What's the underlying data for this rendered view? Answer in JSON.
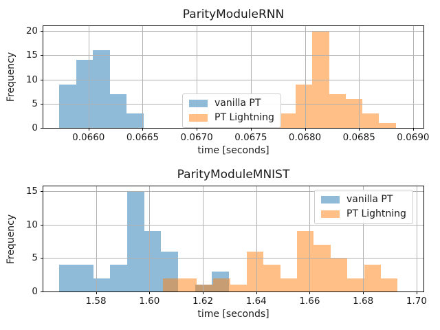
{
  "style": {
    "background": "#ffffff",
    "text_color": "#1a1a1a",
    "spine_color": "#000000",
    "grid_color": "#b0b0b0",
    "legend_border": "#cccccc",
    "series_blue": "#1f77b4",
    "series_orange": "#ff7f0e",
    "blue_rendered": "#8fbbd9",
    "orange_rendered": "#ffbf86",
    "overlap_rendered": "#c79d73"
  },
  "chart_data": [
    {
      "type": "histogram",
      "title": "ParityModuleRNN",
      "xlabel": "time [seconds]",
      "ylabel": "Frequency",
      "xlim": [
        0.065582,
        0.069096
      ],
      "ylim": [
        0,
        21
      ],
      "xticks": [
        0.066,
        0.0665,
        0.067,
        0.0675,
        0.068,
        0.0685,
        0.069
      ],
      "xtick_labels": [
        "0.0660",
        "0.0665",
        "0.0670",
        "0.0675",
        "0.0680",
        "0.0685",
        "0.0690"
      ],
      "yticks": [
        0,
        5,
        10,
        15,
        20
      ],
      "ytick_labels": [
        "0",
        "5",
        "10",
        "15",
        "20"
      ],
      "grid": true,
      "legend_loc": "center",
      "series": [
        {
          "name": "vanilla PT",
          "color": "#1f77b4",
          "alpha": 0.5,
          "bin_start": 0.06573,
          "bin_width": 0.000156,
          "counts": [
            9,
            14,
            16,
            7,
            3
          ]
        },
        {
          "name": "PT Lightning",
          "color": "#ff7f0e",
          "alpha": 0.5,
          "bin_start": 0.06776,
          "bin_width": 0.0001543,
          "counts": [
            3,
            9,
            20,
            7,
            6,
            3,
            1
          ]
        }
      ]
    },
    {
      "type": "histogram",
      "title": "ParityModuleMNIST",
      "xlabel": "time [seconds]",
      "ylabel": "Frequency",
      "xlim": [
        1.5603,
        1.7026
      ],
      "ylim": [
        0,
        15.7
      ],
      "xticks": [
        1.58,
        1.6,
        1.62,
        1.64,
        1.66,
        1.68,
        1.7
      ],
      "xtick_labels": [
        "1.58",
        "1.60",
        "1.62",
        "1.64",
        "1.66",
        "1.68",
        "1.70"
      ],
      "yticks": [
        0,
        5,
        10,
        15
      ],
      "ytick_labels": [
        "0",
        "5",
        "10",
        "15"
      ],
      "grid": true,
      "legend_loc": "upper right",
      "series": [
        {
          "name": "vanilla PT",
          "color": "#1f77b4",
          "alpha": 0.5,
          "bin_start": 1.5663,
          "bin_width": 0.00635,
          "counts": [
            4,
            4,
            2,
            4,
            15,
            9,
            6,
            0,
            1,
            3
          ]
        },
        {
          "name": "PT Lightning",
          "color": "#ff7f0e",
          "alpha": 0.5,
          "bin_start": 1.6051,
          "bin_width": 0.006271,
          "counts": [
            2,
            2,
            1,
            2,
            1,
            6,
            4,
            2,
            9,
            7,
            5,
            2,
            4,
            2
          ]
        }
      ]
    }
  ]
}
